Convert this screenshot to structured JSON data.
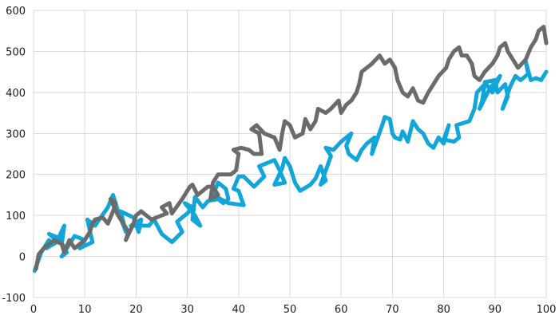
{
  "chart_data": {
    "type": "line",
    "title": "",
    "xlabel": "",
    "ylabel": "",
    "xlim": [
      0,
      100
    ],
    "ylim": [
      -100,
      600
    ],
    "x_ticks": [
      0,
      10,
      20,
      30,
      40,
      50,
      60,
      70,
      80,
      90,
      100
    ],
    "y_ticks": [
      -100,
      0,
      100,
      200,
      300,
      400,
      500,
      600
    ],
    "grid": true,
    "legend": "none",
    "colors": {
      "series_blue": "#12a5d9",
      "series_gray": "#6b6b6b",
      "grid": "#d9d9d9"
    },
    "series": [
      {
        "color": "#12a5d9",
        "points": [
          [
            0.2,
            -35
          ],
          [
            1.5,
            10
          ],
          [
            3,
            40
          ],
          [
            2.5,
            20
          ],
          [
            4.5,
            35
          ],
          [
            6,
            75
          ],
          [
            5.5,
            30
          ],
          [
            3,
            55
          ],
          [
            5,
            45
          ],
          [
            6.5,
            10
          ],
          [
            5.5,
            0
          ],
          [
            8,
            50
          ],
          [
            10,
            40
          ],
          [
            9,
            20
          ],
          [
            11.5,
            35
          ],
          [
            10.5,
            90
          ],
          [
            12,
            75
          ],
          [
            14.5,
            120
          ],
          [
            15.5,
            150
          ],
          [
            16.5,
            110
          ],
          [
            18,
            60
          ],
          [
            17,
            110
          ],
          [
            19.5,
            95
          ],
          [
            20.5,
            60
          ],
          [
            21,
            90
          ],
          [
            19,
            75
          ],
          [
            22.5,
            75
          ],
          [
            23.5,
            90
          ],
          [
            25,
            55
          ],
          [
            27,
            35
          ],
          [
            29,
            60
          ],
          [
            28,
            85
          ],
          [
            30,
            105
          ],
          [
            31,
            120
          ],
          [
            29.5,
            130
          ],
          [
            31.5,
            100
          ],
          [
            32.5,
            75
          ],
          [
            31,
            90
          ],
          [
            31.5,
            145
          ],
          [
            33,
            120
          ],
          [
            34,
            135
          ],
          [
            36,
            140
          ],
          [
            37,
            130
          ],
          [
            38,
            140
          ],
          [
            37.5,
            165
          ],
          [
            36,
            180
          ],
          [
            35,
            150
          ],
          [
            38,
            130
          ],
          [
            41,
            125
          ],
          [
            40,
            160
          ],
          [
            39,
            165
          ],
          [
            40,
            195
          ],
          [
            41,
            195
          ],
          [
            43,
            170
          ],
          [
            45,
            195
          ],
          [
            44,
            220
          ],
          [
            47,
            235
          ],
          [
            48,
            210
          ],
          [
            49,
            180
          ],
          [
            47,
            175
          ],
          [
            48.5,
            215
          ],
          [
            49,
            240
          ],
          [
            50,
            220
          ],
          [
            51,
            180
          ],
          [
            52,
            160
          ],
          [
            54,
            175
          ],
          [
            55,
            190
          ],
          [
            56,
            220
          ],
          [
            57,
            185
          ],
          [
            56,
            175
          ],
          [
            58,
            245
          ],
          [
            57,
            265
          ],
          [
            58.5,
            260
          ],
          [
            60,
            280
          ],
          [
            62,
            300
          ],
          [
            61,
            270
          ],
          [
            61.5,
            250
          ],
          [
            63,
            235
          ],
          [
            64,
            260
          ],
          [
            65,
            275
          ],
          [
            66.5,
            290
          ],
          [
            66,
            250
          ],
          [
            68,
            320
          ],
          [
            68.5,
            340
          ],
          [
            69.5,
            335
          ],
          [
            70,
            300
          ],
          [
            70.5,
            290
          ],
          [
            71.5,
            285
          ],
          [
            72,
            305
          ],
          [
            73,
            280
          ],
          [
            74,
            330
          ],
          [
            75,
            310
          ],
          [
            76,
            300
          ],
          [
            77,
            275
          ],
          [
            78,
            265
          ],
          [
            79,
            290
          ],
          [
            80,
            275
          ],
          [
            81,
            320
          ],
          [
            80,
            285
          ],
          [
            82,
            280
          ],
          [
            83,
            290
          ],
          [
            82.5,
            320
          ],
          [
            85,
            330
          ],
          [
            86,
            360
          ],
          [
            86.5,
            400
          ],
          [
            88,
            420
          ],
          [
            87.5,
            380
          ],
          [
            87,
            360
          ],
          [
            89,
            410
          ],
          [
            91,
            440
          ],
          [
            89.5,
            400
          ],
          [
            88,
            425
          ],
          [
            90,
            430
          ],
          [
            90.5,
            400
          ],
          [
            92,
            420
          ],
          [
            92.5,
            390
          ],
          [
            91.5,
            360
          ],
          [
            93,
            415
          ],
          [
            94,
            440
          ],
          [
            95,
            430
          ],
          [
            96.5,
            445
          ],
          [
            96,
            475
          ],
          [
            97,
            430
          ],
          [
            98,
            435
          ],
          [
            99,
            430
          ],
          [
            100,
            450
          ]
        ]
      },
      {
        "color": "#6b6b6b",
        "points": [
          [
            0.5,
            -30
          ],
          [
            1,
            5
          ],
          [
            2,
            20
          ],
          [
            3,
            30
          ],
          [
            4,
            40
          ],
          [
            5.5,
            30
          ],
          [
            6,
            10
          ],
          [
            7,
            40
          ],
          [
            8,
            20
          ],
          [
            9,
            30
          ],
          [
            10,
            40
          ],
          [
            11,
            60
          ],
          [
            11.5,
            80
          ],
          [
            12,
            90
          ],
          [
            13.5,
            95
          ],
          [
            14.5,
            80
          ],
          [
            15.5,
            110
          ],
          [
            16,
            130
          ],
          [
            15,
            140
          ],
          [
            16.5,
            100
          ],
          [
            18.5,
            60
          ],
          [
            18,
            40
          ],
          [
            19.5,
            80
          ],
          [
            20,
            100
          ],
          [
            21,
            110
          ],
          [
            22,
            100
          ],
          [
            23,
            90
          ],
          [
            24,
            95
          ],
          [
            26,
            105
          ],
          [
            25,
            120
          ],
          [
            26.5,
            130
          ],
          [
            27,
            105
          ],
          [
            29,
            140
          ],
          [
            30.5,
            170
          ],
          [
            31,
            175
          ],
          [
            32,
            150
          ],
          [
            34,
            170
          ],
          [
            35,
            170
          ],
          [
            36,
            150
          ],
          [
            34.5,
            140
          ],
          [
            35,
            180
          ],
          [
            36,
            200
          ],
          [
            38.5,
            200
          ],
          [
            39.5,
            210
          ],
          [
            40,
            250
          ],
          [
            39,
            260
          ],
          [
            40.5,
            265
          ],
          [
            42,
            260
          ],
          [
            43,
            250
          ],
          [
            44.5,
            250
          ],
          [
            44,
            300
          ],
          [
            42.5,
            310
          ],
          [
            43.5,
            320
          ],
          [
            45,
            300
          ],
          [
            47,
            290
          ],
          [
            48,
            260
          ],
          [
            48.5,
            300
          ],
          [
            49,
            330
          ],
          [
            50,
            320
          ],
          [
            51,
            290
          ],
          [
            52.5,
            300
          ],
          [
            53,
            335
          ],
          [
            54,
            310
          ],
          [
            55,
            330
          ],
          [
            55.5,
            360
          ],
          [
            57,
            350
          ],
          [
            58,
            360
          ],
          [
            59.5,
            380
          ],
          [
            60,
            350
          ],
          [
            61,
            370
          ],
          [
            62,
            380
          ],
          [
            63,
            400
          ],
          [
            63.5,
            420
          ],
          [
            64,
            450
          ],
          [
            66,
            470
          ],
          [
            67.5,
            490
          ],
          [
            68.5,
            470
          ],
          [
            69.5,
            480
          ],
          [
            70.5,
            460
          ],
          [
            71,
            430
          ],
          [
            72,
            400
          ],
          [
            73,
            390
          ],
          [
            74,
            410
          ],
          [
            75,
            380
          ],
          [
            76,
            375
          ],
          [
            77,
            400
          ],
          [
            78,
            420
          ],
          [
            79,
            440
          ],
          [
            80.5,
            460
          ],
          [
            81,
            480
          ],
          [
            82,
            500
          ],
          [
            83,
            510
          ],
          [
            83.5,
            490
          ],
          [
            84.5,
            490
          ],
          [
            85.5,
            470
          ],
          [
            86,
            440
          ],
          [
            87,
            430
          ],
          [
            88,
            450
          ],
          [
            89.5,
            470
          ],
          [
            90.5,
            490
          ],
          [
            91,
            510
          ],
          [
            92,
            520
          ],
          [
            92.5,
            500
          ],
          [
            93.5,
            480
          ],
          [
            94.5,
            460
          ],
          [
            96,
            480
          ],
          [
            97,
            510
          ],
          [
            98,
            530
          ],
          [
            98.5,
            550
          ],
          [
            99.5,
            560
          ],
          [
            100,
            520
          ]
        ]
      }
    ]
  }
}
